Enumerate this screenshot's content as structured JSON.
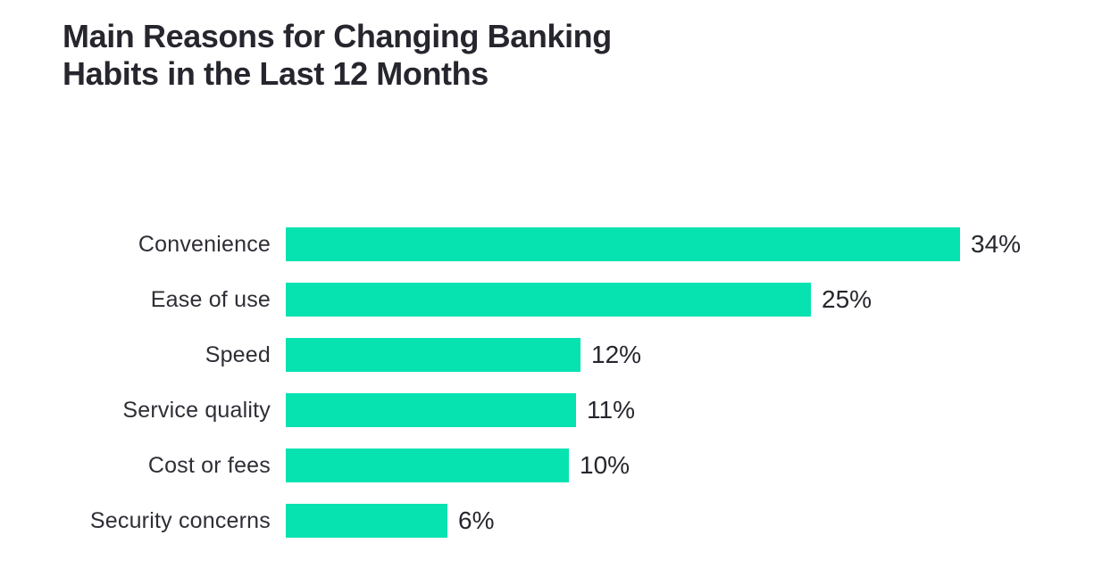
{
  "title": {
    "line1": "Main Reasons for Changing Banking",
    "line2": "Habits in the Last 12 Months"
  },
  "chart_data": {
    "type": "bar",
    "orientation": "horizontal",
    "title": "Main Reasons for Changing Banking Habits in the Last 12 Months",
    "categories": [
      "Convenience",
      "Ease of use",
      "Speed",
      "Service quality",
      "Cost or fees",
      "Security concerns"
    ],
    "values": [
      34,
      25,
      12,
      11,
      10,
      6
    ],
    "value_labels": [
      "34%",
      "25%",
      "12%",
      "11%",
      "10%",
      "6%"
    ],
    "unit": "%",
    "bar_pixel_widths": [
      755,
      588,
      330,
      325,
      317,
      181
    ],
    "xlim": [
      0,
      40
    ],
    "grid": false,
    "legend": false,
    "axes_shown": false,
    "bar_color": "#06e2b0",
    "title_color": "#26262e",
    "label_color": "#2e2e36",
    "value_color": "#26262e",
    "background_color": "#ffffff"
  }
}
